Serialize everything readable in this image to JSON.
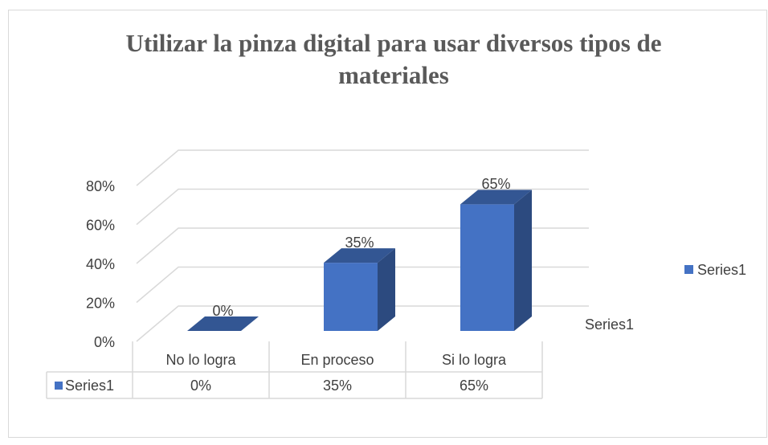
{
  "chart_data": {
    "type": "bar",
    "title": "Utilizar la pinza digital para usar diversos tipos de materiales",
    "categories": [
      "No lo  logra",
      "En proceso",
      "Si lo logra"
    ],
    "series": [
      {
        "name": "Series1",
        "color": "#4472c4",
        "values": [
          0,
          35,
          65
        ],
        "value_labels": [
          "0%",
          "35%",
          "65%"
        ]
      }
    ],
    "ylim": [
      0,
      80
    ],
    "yticks": [
      {
        "value": 0,
        "label": "0%"
      },
      {
        "value": 20,
        "label": "20%"
      },
      {
        "value": 40,
        "label": "40%"
      },
      {
        "value": 60,
        "label": "60%"
      },
      {
        "value": 80,
        "label": "80%"
      }
    ],
    "grid": true,
    "legend": "right",
    "data_table": true
  }
}
